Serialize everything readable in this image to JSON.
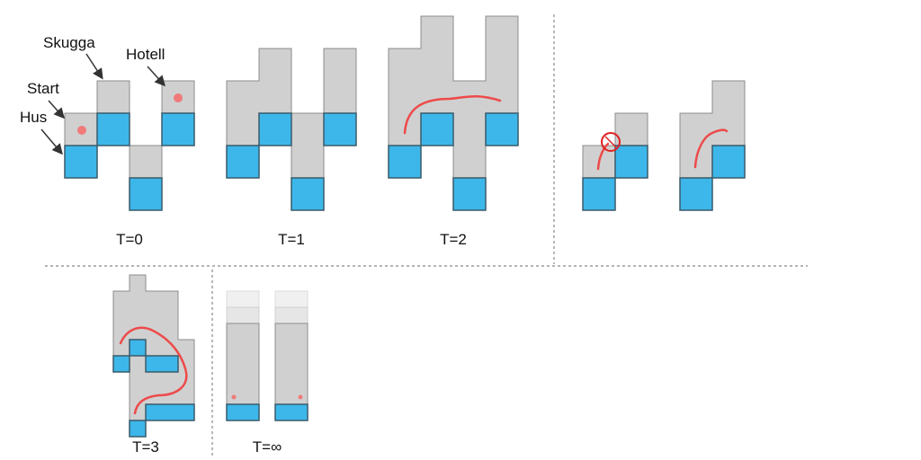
{
  "callouts": {
    "skugga": "Skugga",
    "hotell": "Hotell",
    "start": "Start",
    "hus": "Hus"
  },
  "panels": {
    "t0": "T=0",
    "t1": "T=1",
    "t2": "T=2",
    "t3": "T=3",
    "tinf": "T=∞"
  },
  "colors": {
    "house": "#3db7ea",
    "shadow": "#d0d0d0",
    "path": "#ee4a4a",
    "marker": "#f07a7a"
  },
  "icons": {
    "blocked": "no-entry-icon"
  }
}
